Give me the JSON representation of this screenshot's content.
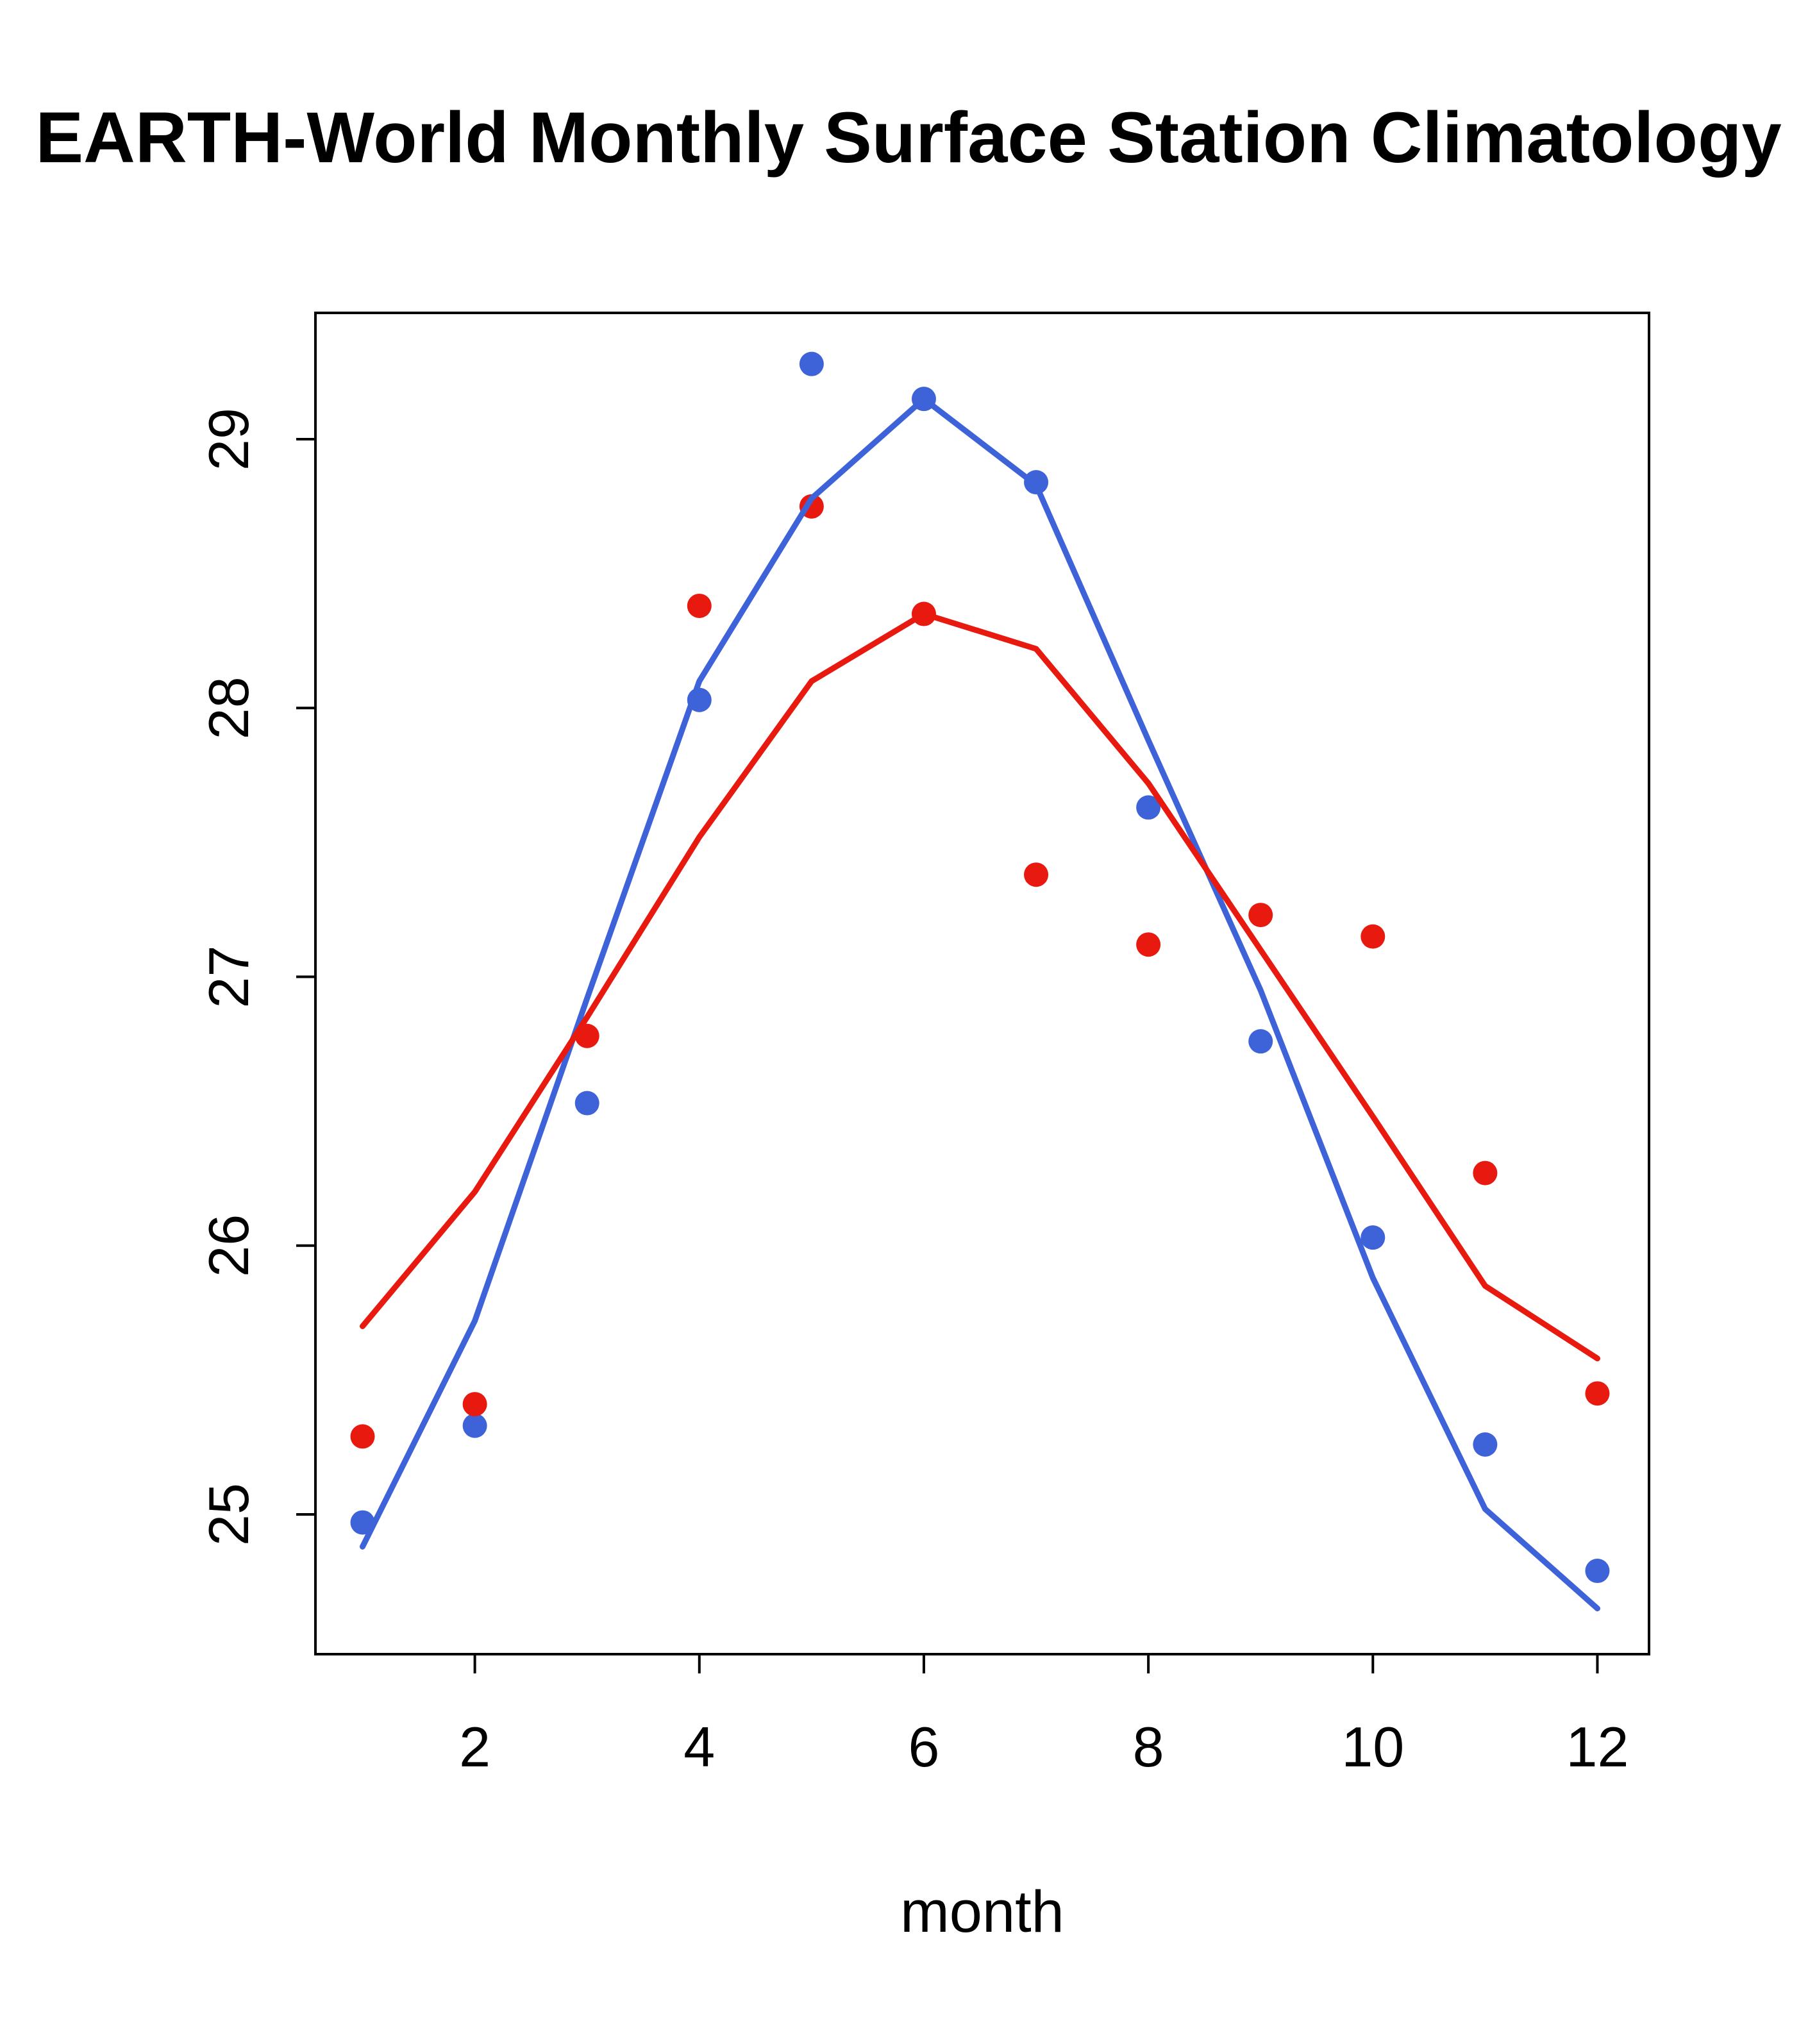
{
  "chart_data": {
    "type": "line",
    "title": "EARTH-World Monthly Surface Station Climatology",
    "xlabel": "month",
    "ylabel": "",
    "x": [
      1,
      2,
      3,
      4,
      5,
      6,
      7,
      8,
      9,
      10,
      11,
      12
    ],
    "xticks": [
      2,
      4,
      6,
      8,
      10,
      12
    ],
    "yticks": [
      25,
      26,
      27,
      28,
      29
    ],
    "xlim": [
      0.58,
      12.46
    ],
    "ylim": [
      24.48,
      29.47
    ],
    "grid": false,
    "legend": "none",
    "colors": {
      "series1": "#3E63D9",
      "series2": "#E8190F",
      "axis": "#000000",
      "background": "#ffffff"
    },
    "series": [
      {
        "name": "blue-monthly-observations",
        "kind": "points",
        "color": "#3E63D9",
        "values": [
          24.97,
          25.33,
          26.53,
          28.03,
          29.28,
          29.15,
          28.84,
          27.63,
          26.76,
          26.03,
          25.26,
          24.79
        ]
      },
      {
        "name": "blue-smoothed-fit",
        "kind": "line",
        "color": "#3E63D9",
        "values": [
          24.88,
          25.72,
          26.92,
          28.1,
          28.78,
          29.15,
          28.83,
          27.88,
          26.95,
          25.88,
          25.02,
          24.65
        ]
      },
      {
        "name": "red-monthly-observations",
        "kind": "points",
        "color": "#E8190F",
        "values": [
          25.29,
          25.41,
          26.78,
          28.38,
          28.75,
          28.35,
          27.38,
          27.12,
          27.23,
          27.15,
          26.27,
          25.45
        ]
      },
      {
        "name": "red-smoothed-fit",
        "kind": "line",
        "color": "#E8190F",
        "values": [
          25.7,
          26.2,
          26.85,
          27.52,
          28.1,
          28.35,
          28.22,
          27.72,
          27.1,
          26.48,
          25.85,
          25.58
        ]
      }
    ]
  }
}
